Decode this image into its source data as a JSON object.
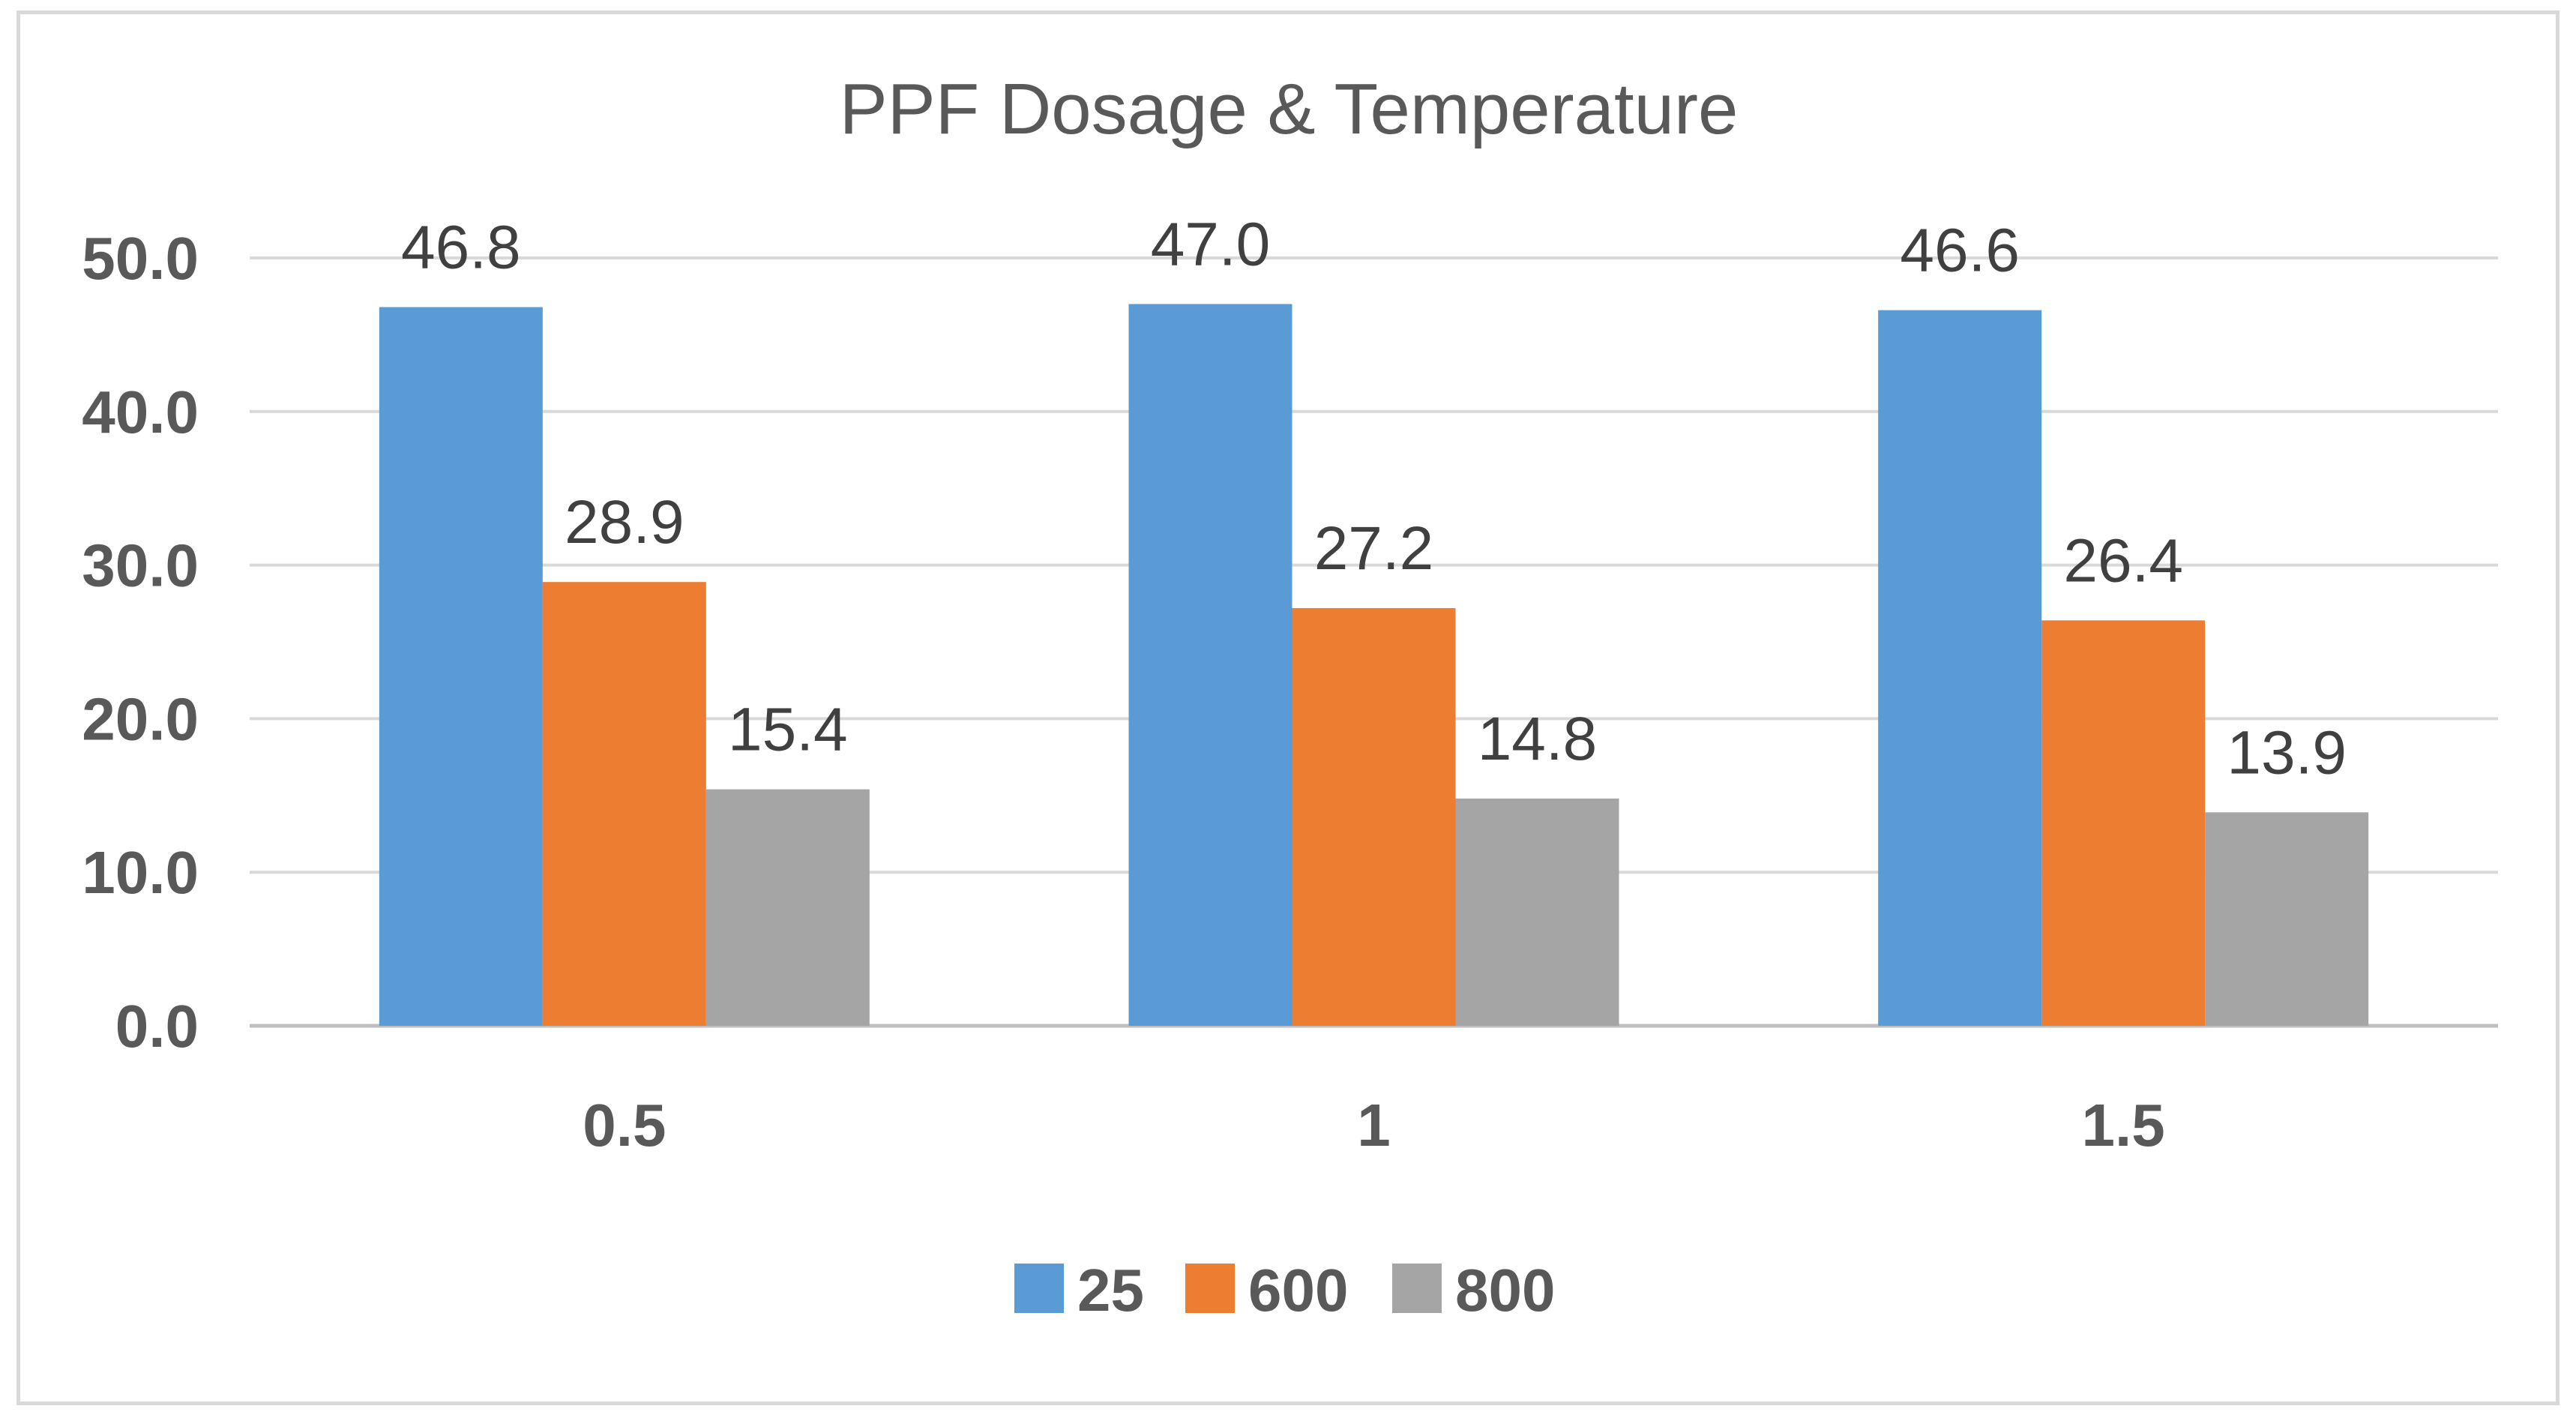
{
  "chart_data": {
    "type": "bar",
    "title": "PPF Dosage & Temperature",
    "xlabel": "",
    "ylabel": "",
    "categories": [
      "0.5",
      "1",
      "1.5"
    ],
    "series": [
      {
        "name": "25",
        "color": "#5B9BD5",
        "values": [
          46.8,
          47.0,
          46.6
        ],
        "labels": [
          "46.8",
          "47.0",
          "46.6"
        ]
      },
      {
        "name": "600",
        "color": "#ED7D31",
        "values": [
          28.9,
          27.2,
          26.4
        ],
        "labels": [
          "28.9",
          "27.2",
          "26.4"
        ]
      },
      {
        "name": "800",
        "color": "#A5A5A5",
        "values": [
          15.4,
          14.8,
          13.9
        ],
        "labels": [
          "15.4",
          "14.8",
          "13.9"
        ]
      }
    ],
    "ylim": [
      0,
      50
    ],
    "yticks": [
      "0.0",
      "10.0",
      "20.0",
      "30.0",
      "40.0",
      "50.0"
    ],
    "ytick_values": [
      0,
      10,
      20,
      30,
      40,
      50
    ],
    "grid": true,
    "legend_position": "bottom"
  }
}
